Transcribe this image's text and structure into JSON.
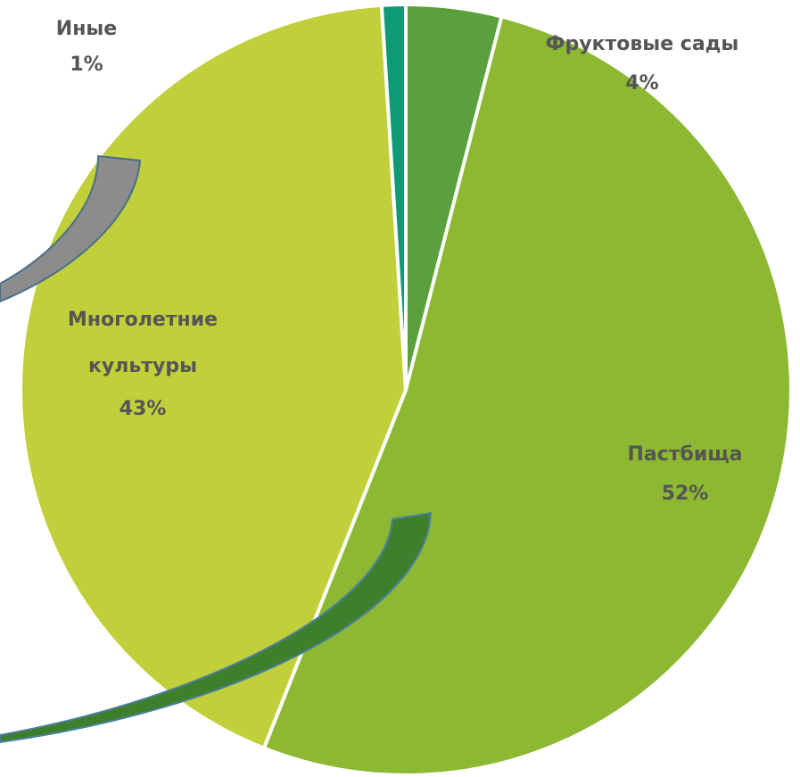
{
  "chart_data": {
    "type": "pie",
    "categories": [
      "Фруктовые сады",
      "Пастбища",
      "Многолетние культуры",
      "Иные"
    ],
    "values": [
      4,
      52,
      43,
      1
    ],
    "value_labels": [
      "4%",
      "52%",
      "43%",
      "1%"
    ],
    "colors": [
      "#5aa03c",
      "#8db832",
      "#c0cf3a",
      "#0e9a74"
    ]
  }
}
